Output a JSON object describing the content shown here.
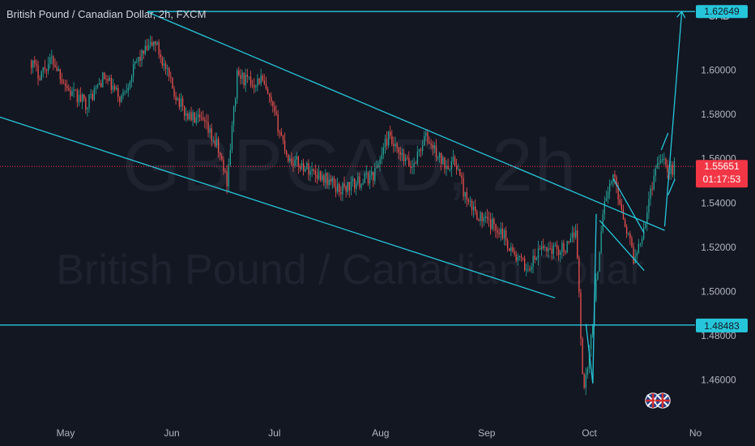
{
  "header": {
    "title": "British Pound / Canadian Dollar, 2h, FXCM"
  },
  "watermark": {
    "symbol": "GBPCAD, 2h",
    "name": "British Pound / Canadian Dollar"
  },
  "currency_label": "CAD",
  "colors": {
    "background": "#131722",
    "up": "#26a69a",
    "down": "#ef5350",
    "drawing": "#26c6da",
    "price_badge": "#f23645",
    "level_badge": "#26c6da",
    "axis_text": "#b2b5be",
    "watermark": "#2a2e39"
  },
  "chart_data": {
    "type": "candlestick",
    "title": "British Pound / Canadian Dollar, 2h, FXCM",
    "x_ticks": [
      "May",
      "Jun",
      "Jul",
      "Aug",
      "Sep",
      "Oct",
      "No"
    ],
    "y_ticks": [
      "1.60000",
      "1.58000",
      "1.56000",
      "1.54000",
      "1.52000",
      "1.50000",
      "1.48000",
      "1.46000"
    ],
    "ylim": [
      1.4419,
      1.6317
    ],
    "price_path": [
      [
        "2024-04-12",
        1.637
      ],
      [
        "2024-04-17",
        1.612
      ],
      [
        "2024-04-22",
        1.598
      ],
      [
        "2024-04-26",
        1.605
      ],
      [
        "2024-05-01",
        1.59
      ],
      [
        "2024-05-06",
        1.585
      ],
      [
        "2024-05-11",
        1.597
      ],
      [
        "2024-05-16",
        1.587
      ],
      [
        "2024-05-21",
        1.605
      ],
      [
        "2024-05-26",
        1.613
      ],
      [
        "2024-05-31",
        1.592
      ],
      [
        "2024-06-04",
        1.58
      ],
      [
        "2024-06-09",
        1.576
      ],
      [
        "2024-06-13",
        1.566
      ],
      [
        "2024-06-16",
        1.55
      ],
      [
        "2024-06-19",
        1.598
      ],
      [
        "2024-06-23",
        1.594
      ],
      [
        "2024-06-26",
        1.596
      ],
      [
        "2024-06-30",
        1.579
      ],
      [
        "2024-07-04",
        1.56
      ],
      [
        "2024-07-09",
        1.556
      ],
      [
        "2024-07-14",
        1.552
      ],
      [
        "2024-07-19",
        1.546
      ],
      [
        "2024-07-24",
        1.549
      ],
      [
        "2024-07-29",
        1.553
      ],
      [
        "2024-08-02",
        1.57
      ],
      [
        "2024-08-05",
        1.562
      ],
      [
        "2024-08-09",
        1.556
      ],
      [
        "2024-08-13",
        1.57
      ],
      [
        "2024-08-18",
        1.558
      ],
      [
        "2024-08-22",
        1.558
      ],
      [
        "2024-08-25",
        1.54
      ],
      [
        "2024-08-30",
        1.532
      ],
      [
        "2024-09-04",
        1.528
      ],
      [
        "2024-09-08",
        1.516
      ],
      [
        "2024-09-12",
        1.51
      ],
      [
        "2024-09-16",
        1.52
      ],
      [
        "2024-09-20",
        1.519
      ],
      [
        "2024-09-24",
        1.52
      ],
      [
        "2024-09-26",
        1.53
      ],
      [
        "2024-09-28",
        1.455
      ],
      [
        "2024-09-30",
        1.474
      ],
      [
        "2024-10-02",
        1.506
      ],
      [
        "2024-10-04",
        1.54
      ],
      [
        "2024-10-07",
        1.552
      ],
      [
        "2024-10-10",
        1.533
      ],
      [
        "2024-10-13",
        1.514
      ],
      [
        "2024-10-16",
        1.531
      ],
      [
        "2024-10-19",
        1.555
      ],
      [
        "2024-10-21",
        1.563
      ],
      [
        "2024-10-23",
        1.553
      ],
      [
        "2024-10-25",
        1.557
      ]
    ],
    "current_price": {
      "value": 1.55651,
      "label": "1.55651",
      "countdown": "01:17:53"
    },
    "target_level": {
      "value": 1.6265,
      "label": "1.62649"
    },
    "support_level": {
      "value": 1.48483,
      "label": "1.48483"
    },
    "drawings": [
      {
        "name": "channel-upper-line",
        "from": [
          "2024-05-24",
          1.6262
        ],
        "to": [
          "2024-10-22",
          1.5276
        ]
      },
      {
        "name": "channel-lower-line",
        "from": [
          "2024-04-08",
          1.5802
        ],
        "to": [
          "2024-09-20",
          1.4971
        ]
      },
      {
        "name": "wedge-lower-line",
        "from": [
          "2024-10-03",
          1.5321
        ],
        "to": [
          "2024-10-16",
          1.5095
        ]
      },
      {
        "name": "wedge-upper-line",
        "from": [
          "2024-10-07",
          1.5509
        ],
        "to": [
          "2024-10-16",
          1.5264
        ]
      },
      {
        "name": "drop-left-line",
        "from": [
          "2024-09-29",
          1.4853
        ],
        "to": [
          "2024-10-01",
          1.4585
        ]
      },
      {
        "name": "drop-right-line",
        "from": [
          "2024-10-01",
          1.4585
        ],
        "to": [
          "2024-10-02",
          1.535
        ]
      },
      {
        "name": "pennant-upper-line",
        "from": [
          "2024-10-21",
          1.5639
        ],
        "to": [
          "2024-10-23",
          1.5716
        ]
      },
      {
        "name": "pennant-lower-line",
        "from": [
          "2024-10-23",
          1.5436
        ],
        "to": [
          "2024-10-25",
          1.5508
        ]
      },
      {
        "name": "projection-line",
        "from": [
          "2024-10-22",
          1.5294
        ],
        "to": [
          "2024-10-27",
          1.6265
        ]
      }
    ]
  }
}
